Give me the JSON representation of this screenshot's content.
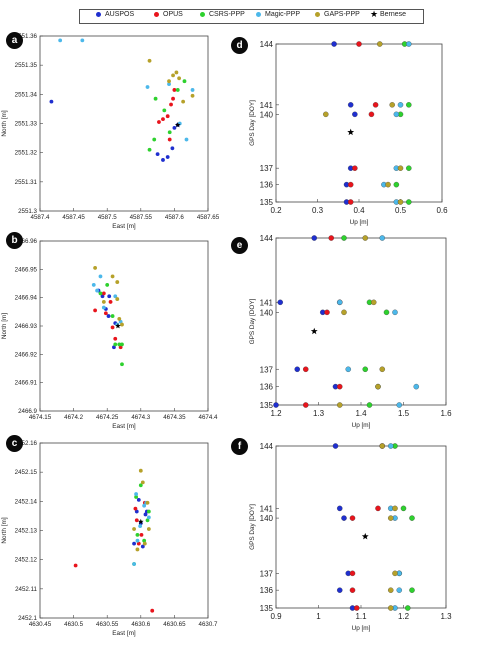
{
  "legend": {
    "items": [
      {
        "label": "AUSPOS",
        "color": "#1f2fcf",
        "marker": "circle"
      },
      {
        "label": "OPUS",
        "color": "#e8141c",
        "marker": "circle"
      },
      {
        "label": "CSRS-PPP",
        "color": "#2ed12e",
        "marker": "circle"
      },
      {
        "label": "Magic-PPP",
        "color": "#4cb8ea",
        "marker": "circle"
      },
      {
        "label": "GAPS-PPP",
        "color": "#b6a12a",
        "marker": "circle"
      },
      {
        "label": "Bernese",
        "color": "#000000",
        "marker": "star"
      }
    ]
  },
  "panel_labels": [
    "a",
    "b",
    "c",
    "d",
    "e",
    "f"
  ],
  "chart_data": [
    {
      "panel": "a",
      "type": "scatter",
      "xlabel": "East [m]",
      "ylabel": "North [m]",
      "xlim": [
        4587.4,
        4587.65
      ],
      "ylim": [
        2551.3,
        2551.36
      ],
      "xticks": [
        "4587.4",
        "4587.45",
        "4587.5",
        "4587.55",
        "4587.6",
        "4587.65"
      ],
      "yticks": [
        "2551.3",
        "2551.31",
        "2551.32",
        "2551.33",
        "2551.34",
        "2551.35",
        "2551.36"
      ],
      "series": [
        {
          "name": "AUSPOS",
          "x": [
            4587.417,
            4587.575,
            4587.583,
            4587.59,
            4587.597,
            4587.6,
            4587.605
          ],
          "y": [
            2551.3375,
            2551.3195,
            2551.3175,
            2551.3185,
            2551.3215,
            2551.3285,
            2551.3295
          ]
        },
        {
          "name": "OPUS",
          "x": [
            4587.577,
            4587.583,
            4587.59,
            4587.595,
            4587.593,
            4587.598,
            4587.6
          ],
          "y": [
            2551.3305,
            2551.3315,
            2551.3325,
            2551.3365,
            2551.3245,
            2551.3385,
            2551.3415
          ]
        },
        {
          "name": "CSRS-PPP",
          "x": [
            4587.563,
            4587.57,
            4587.572,
            4587.585,
            4587.593,
            4587.605,
            4587.615
          ],
          "y": [
            2551.321,
            2551.3245,
            2551.3385,
            2551.3345,
            2551.327,
            2551.3415,
            2551.3445
          ]
        },
        {
          "name": "Magic-PPP",
          "x": [
            4587.43,
            4587.463,
            4587.56,
            4587.592,
            4587.608,
            4587.618,
            4587.627
          ],
          "y": [
            2551.3585,
            2551.3585,
            2551.3425,
            2551.3435,
            2551.33,
            2551.3245,
            2551.3415
          ]
        },
        {
          "name": "GAPS-PPP",
          "x": [
            4587.563,
            4587.592,
            4587.598,
            4587.603,
            4587.607,
            4587.613,
            4587.627
          ],
          "y": [
            2551.3515,
            2551.3445,
            2551.3465,
            2551.3475,
            2551.3455,
            2551.3375,
            2551.3395
          ]
        },
        {
          "name": "Bernese",
          "x": [
            4587.605
          ],
          "y": [
            2551.3295
          ]
        }
      ]
    },
    {
      "panel": "b",
      "type": "scatter",
      "xlabel": "East [m]",
      "ylabel": "North [m]",
      "xlim": [
        4674.15,
        4674.4
      ],
      "ylim": [
        2466.9,
        2466.96
      ],
      "xticks": [
        "4674.15",
        "4674.2",
        "4674.25",
        "4674.3",
        "4674.35",
        "4674.4"
      ],
      "yticks": [
        "2466.9",
        "2466.91",
        "2466.92",
        "2466.93",
        "2466.94",
        "2466.95",
        "2466.96"
      ],
      "series": [
        {
          "name": "AUSPOS",
          "x": [
            4674.237,
            4674.243,
            4674.248,
            4674.252,
            4674.253,
            4674.26,
            4674.262
          ],
          "y": [
            2466.9425,
            2466.9405,
            2466.936,
            2466.9335,
            2466.9405,
            2466.9225,
            2466.931
          ]
        },
        {
          "name": "OPUS",
          "x": [
            4674.232,
            4674.245,
            4674.248,
            4674.255,
            4674.258,
            4674.262,
            4674.27
          ],
          "y": [
            2466.9355,
            2466.9415,
            2466.9345,
            2466.9385,
            2466.9295,
            2466.9255,
            2466.9225
          ]
        },
        {
          "name": "CSRS-PPP",
          "x": [
            4674.24,
            4674.25,
            4674.258,
            4674.262,
            4674.268,
            4674.272,
            4674.272
          ],
          "y": [
            2466.9415,
            2466.9445,
            2466.9335,
            2466.9235,
            2466.9235,
            2466.9235,
            2466.9165
          ]
        },
        {
          "name": "Magic-PPP",
          "x": [
            4674.23,
            4674.235,
            4674.24,
            4674.245,
            4674.262,
            4674.265,
            4674.27
          ],
          "y": [
            2466.9445,
            2466.9425,
            2466.9475,
            2466.9365,
            2466.9405,
            2466.9305,
            2466.9315
          ]
        },
        {
          "name": "GAPS-PPP",
          "x": [
            4674.232,
            4674.245,
            4674.258,
            4674.265,
            4674.268,
            4674.272,
            4674.265
          ],
          "y": [
            2466.9505,
            2466.9385,
            2466.9475,
            2466.9395,
            2466.9325,
            2466.9305,
            2466.9455
          ]
        },
        {
          "name": "Bernese",
          "x": [
            4674.266
          ],
          "y": [
            2466.93
          ]
        }
      ]
    },
    {
      "panel": "c",
      "type": "scatter",
      "xlabel": "East [m]",
      "ylabel": "North [m]",
      "xlim": [
        4630.45,
        4630.7
      ],
      "ylim": [
        2452.1,
        2452.16
      ],
      "xticks": [
        "4630.45",
        "4630.5",
        "4630.55",
        "4630.6",
        "4630.65",
        "4630.7"
      ],
      "yticks": [
        "2452.1",
        "2452.11",
        "2452.12",
        "2452.13",
        "2452.14",
        "2452.15",
        "2452.16"
      ],
      "series": [
        {
          "name": "AUSPOS",
          "x": [
            4630.59,
            4630.594,
            4630.597,
            4630.6,
            4630.603,
            4630.607,
            4630.609
          ],
          "y": [
            2452.1255,
            2452.1365,
            2452.1405,
            2452.1325,
            2452.1245,
            2452.1355,
            2452.1365
          ]
        },
        {
          "name": "OPUS",
          "x": [
            4630.503,
            4630.592,
            4630.594,
            4630.597,
            4630.601,
            4630.606,
            4630.617
          ],
          "y": [
            2452.118,
            2452.1375,
            2452.1335,
            2452.1255,
            2452.1285,
            2452.1395,
            2452.1025
          ]
        },
        {
          "name": "CSRS-PPP",
          "x": [
            4630.59,
            4630.593,
            4630.595,
            4630.6,
            4630.605,
            4630.61,
            4630.612
          ],
          "y": [
            2452.1185,
            2452.1415,
            2452.1285,
            2452.1455,
            2452.1265,
            2452.1335,
            2452.1365
          ]
        },
        {
          "name": "Magic-PPP",
          "x": [
            4630.59,
            4630.593,
            4630.595,
            4630.599,
            4630.605,
            4630.608,
            4630.612
          ],
          "y": [
            2452.1185,
            2452.1425,
            2452.1265,
            2452.1315,
            2452.1385,
            2452.1395,
            2452.1345
          ]
        },
        {
          "name": "GAPS-PPP",
          "x": [
            4630.59,
            4630.595,
            4630.6,
            4630.603,
            4630.606,
            4630.61,
            4630.612
          ],
          "y": [
            2452.1305,
            2452.1235,
            2452.1505,
            2452.1465,
            2452.1255,
            2452.1395,
            2452.1305
          ]
        },
        {
          "name": "Bernese",
          "x": [
            4630.6
          ],
          "y": [
            2452.133
          ]
        }
      ]
    },
    {
      "panel": "d",
      "type": "scatter",
      "xlabel": "Up [m]",
      "ylabel": "GPS Day [DOY]",
      "xlim": [
        0.2,
        0.6
      ],
      "ylim": [
        135,
        144
      ],
      "xticks": [
        "0.2",
        "0.3",
        "0.4",
        "0.5",
        "0.6"
      ],
      "yticks": [
        "135",
        "136",
        "137",
        "140",
        "141",
        "144"
      ],
      "series": [
        {
          "name": "AUSPOS",
          "x": [
            0.37,
            0.37,
            0.38,
            0.39,
            0.38,
            0.34
          ],
          "y": [
            135,
            136,
            137,
            140,
            141,
            144
          ]
        },
        {
          "name": "OPUS",
          "x": [
            0.38,
            0.38,
            0.39,
            0.43,
            0.44,
            0.4
          ],
          "y": [
            135,
            136,
            137,
            140,
            141,
            144
          ]
        },
        {
          "name": "CSRS-PPP",
          "x": [
            0.52,
            0.49,
            0.52,
            0.5,
            0.52,
            0.51
          ],
          "y": [
            135,
            136,
            137,
            140,
            141,
            144
          ]
        },
        {
          "name": "Magic-PPP",
          "x": [
            0.49,
            0.46,
            0.49,
            0.49,
            0.5,
            0.52
          ],
          "y": [
            135,
            136,
            137,
            140,
            141,
            144
          ]
        },
        {
          "name": "GAPS-PPP",
          "x": [
            0.5,
            0.47,
            0.5,
            0.32,
            0.48,
            0.45
          ],
          "y": [
            135,
            136,
            137,
            140,
            141,
            144
          ]
        },
        {
          "name": "Bernese",
          "x": [
            0.38
          ],
          "y": [
            139
          ]
        }
      ]
    },
    {
      "panel": "e",
      "type": "scatter",
      "xlabel": "Up [m]",
      "ylabel": "GPS Day [DOY]",
      "xlim": [
        1.2,
        1.6
      ],
      "ylim": [
        135,
        144
      ],
      "xticks": [
        "1.2",
        "1.3",
        "1.4",
        "1.5",
        "1.6"
      ],
      "yticks": [
        "135",
        "136",
        "137",
        "140",
        "141",
        "144"
      ],
      "series": [
        {
          "name": "AUSPOS",
          "x": [
            1.2,
            1.34,
            1.25,
            1.31,
            1.21,
            1.29
          ],
          "y": [
            135,
            136,
            137,
            140,
            141,
            144
          ]
        },
        {
          "name": "OPUS",
          "x": [
            1.27,
            1.35,
            1.27,
            1.32,
            1.35,
            1.33
          ],
          "y": [
            135,
            136,
            137,
            140,
            141,
            144
          ]
        },
        {
          "name": "CSRS-PPP",
          "x": [
            1.42,
            1.44,
            1.41,
            1.46,
            1.42,
            1.36
          ],
          "y": [
            135,
            136,
            137,
            140,
            141,
            144
          ]
        },
        {
          "name": "Magic-PPP",
          "x": [
            1.49,
            1.53,
            1.37,
            1.48,
            1.35,
            1.45
          ],
          "y": [
            135,
            136,
            137,
            140,
            141,
            144
          ]
        },
        {
          "name": "GAPS-PPP",
          "x": [
            1.35,
            1.44,
            1.45,
            1.36,
            1.43,
            1.41
          ],
          "y": [
            135,
            136,
            137,
            140,
            141,
            144
          ]
        },
        {
          "name": "Bernese",
          "x": [
            1.29
          ],
          "y": [
            139
          ]
        }
      ]
    },
    {
      "panel": "f",
      "type": "scatter",
      "xlabel": "Up [m]",
      "ylabel": "GPS Day [DOY]",
      "xlim": [
        0.9,
        1.3
      ],
      "ylim": [
        135,
        144
      ],
      "xticks": [
        "0.9",
        "1",
        "1.1",
        "1.2",
        "1.3"
      ],
      "yticks": [
        "135",
        "136",
        "137",
        "140",
        "141",
        "144"
      ],
      "series": [
        {
          "name": "AUSPOS",
          "x": [
            1.08,
            1.05,
            1.07,
            1.06,
            1.05,
            1.04
          ],
          "y": [
            135,
            136,
            137,
            140,
            141,
            144
          ]
        },
        {
          "name": "OPUS",
          "x": [
            1.09,
            1.08,
            1.08,
            1.08,
            1.14,
            1.15
          ],
          "y": [
            135,
            136,
            137,
            140,
            141,
            144
          ]
        },
        {
          "name": "CSRS-PPP",
          "x": [
            1.21,
            1.22,
            1.19,
            1.22,
            1.2,
            1.18
          ],
          "y": [
            135,
            136,
            137,
            140,
            141,
            144
          ]
        },
        {
          "name": "Magic-PPP",
          "x": [
            1.18,
            1.19,
            1.19,
            1.18,
            1.17,
            1.17
          ],
          "y": [
            135,
            136,
            137,
            140,
            141,
            144
          ]
        },
        {
          "name": "GAPS-PPP",
          "x": [
            1.17,
            1.17,
            1.18,
            1.17,
            1.18,
            1.15
          ],
          "y": [
            135,
            136,
            137,
            140,
            141,
            144
          ]
        },
        {
          "name": "Bernese",
          "x": [
            1.11
          ],
          "y": [
            139
          ]
        }
      ]
    }
  ]
}
